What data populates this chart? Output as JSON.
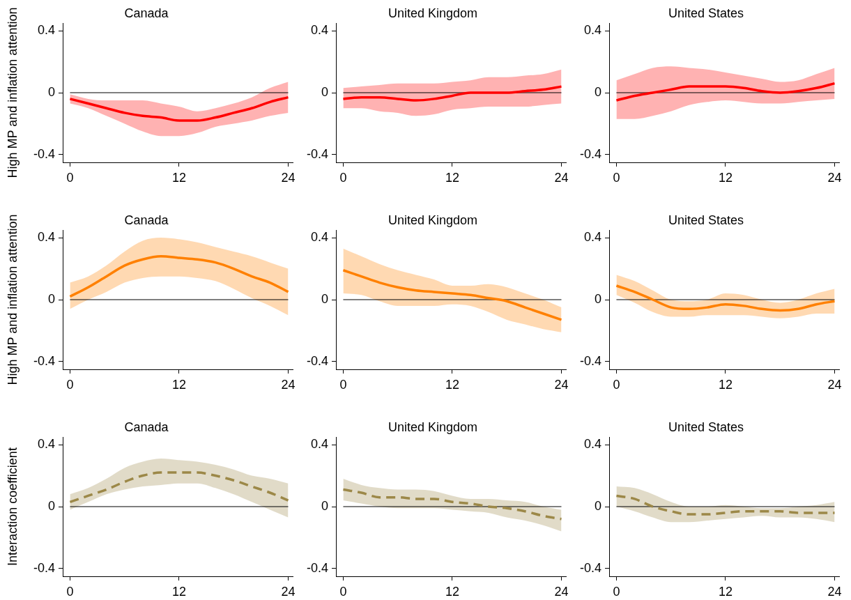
{
  "chart_data": [
    {
      "type": "line",
      "title": "Canada",
      "ylabel": "High MP and inflation attention",
      "x": [
        0,
        2,
        4,
        6,
        8,
        10,
        12,
        14,
        16,
        18,
        20,
        22,
        24
      ],
      "xlim": [
        -0.8,
        24.5
      ],
      "xticks": [
        0,
        12,
        24
      ],
      "ylim": [
        -0.45,
        0.45
      ],
      "yticks": [
        -0.4,
        0,
        0.4
      ],
      "grid": false,
      "legend": false,
      "marker": "none",
      "line_style": "solid",
      "ref_lines": [
        {
          "axis": "y",
          "value": 0,
          "color": "#000000"
        }
      ],
      "series": [
        {
          "color": "#ff0000",
          "values": [
            -0.04,
            -0.07,
            -0.1,
            -0.13,
            -0.15,
            -0.16,
            -0.18,
            -0.18,
            -0.16,
            -0.13,
            -0.1,
            -0.06,
            -0.03
          ],
          "lower": [
            -0.07,
            -0.1,
            -0.15,
            -0.2,
            -0.25,
            -0.28,
            -0.28,
            -0.26,
            -0.22,
            -0.2,
            -0.18,
            -0.15,
            -0.13
          ],
          "upper": [
            -0.01,
            -0.04,
            -0.05,
            -0.05,
            -0.05,
            -0.07,
            -0.09,
            -0.12,
            -0.1,
            -0.07,
            -0.03,
            0.03,
            0.07
          ]
        }
      ]
    },
    {
      "type": "line",
      "title": "United Kingdom",
      "x": [
        0,
        2,
        4,
        6,
        8,
        10,
        12,
        14,
        16,
        18,
        20,
        22,
        24
      ],
      "xlim": [
        -0.8,
        24.5
      ],
      "xticks": [
        0,
        12,
        24
      ],
      "ylim": [
        -0.45,
        0.45
      ],
      "yticks": [
        -0.4,
        0,
        0.4
      ],
      "grid": false,
      "legend": false,
      "marker": "none",
      "line_style": "solid",
      "ref_lines": [
        {
          "axis": "y",
          "value": 0,
          "color": "#000000"
        }
      ],
      "series": [
        {
          "color": "#ff0000",
          "values": [
            -0.04,
            -0.03,
            -0.03,
            -0.04,
            -0.05,
            -0.04,
            -0.02,
            0,
            0,
            0,
            0.01,
            0.02,
            0.04
          ],
          "lower": [
            -0.1,
            -0.1,
            -0.12,
            -0.13,
            -0.15,
            -0.14,
            -0.11,
            -0.1,
            -0.09,
            -0.09,
            -0.09,
            -0.08,
            -0.07
          ],
          "upper": [
            0.03,
            0.04,
            0.05,
            0.06,
            0.06,
            0.06,
            0.07,
            0.08,
            0.1,
            0.1,
            0.11,
            0.12,
            0.15
          ]
        }
      ]
    },
    {
      "type": "line",
      "title": "United States",
      "x": [
        0,
        2,
        4,
        6,
        8,
        10,
        12,
        14,
        16,
        18,
        20,
        22,
        24
      ],
      "xlim": [
        -0.8,
        24.5
      ],
      "xticks": [
        0,
        12,
        24
      ],
      "ylim": [
        -0.45,
        0.45
      ],
      "yticks": [
        -0.4,
        0,
        0.4
      ],
      "grid": false,
      "legend": false,
      "marker": "none",
      "line_style": "solid",
      "ref_lines": [
        {
          "axis": "y",
          "value": 0,
          "color": "#000000"
        }
      ],
      "series": [
        {
          "color": "#ff0000",
          "values": [
            -0.05,
            -0.02,
            0,
            0.02,
            0.04,
            0.04,
            0.04,
            0.03,
            0.01,
            0,
            0.01,
            0.03,
            0.06
          ],
          "lower": [
            -0.17,
            -0.17,
            -0.15,
            -0.12,
            -0.08,
            -0.06,
            -0.05,
            -0.06,
            -0.07,
            -0.07,
            -0.06,
            -0.05,
            -0.04
          ],
          "upper": [
            0.08,
            0.12,
            0.16,
            0.17,
            0.16,
            0.15,
            0.13,
            0.11,
            0.09,
            0.07,
            0.08,
            0.12,
            0.16
          ]
        }
      ]
    },
    {
      "type": "line",
      "title": "Canada",
      "ylabel": "High MP and inflation attention",
      "x": [
        0,
        2,
        4,
        6,
        8,
        10,
        12,
        14,
        16,
        18,
        20,
        22,
        24
      ],
      "xlim": [
        -0.8,
        24.5
      ],
      "xticks": [
        0,
        12,
        24
      ],
      "ylim": [
        -0.45,
        0.45
      ],
      "yticks": [
        -0.4,
        0,
        0.4
      ],
      "grid": false,
      "legend": false,
      "marker": "none",
      "line_style": "solid",
      "ref_lines": [
        {
          "axis": "y",
          "value": 0,
          "color": "#000000"
        }
      ],
      "series": [
        {
          "color": "#ff8000",
          "values": [
            0.02,
            0.08,
            0.15,
            0.22,
            0.26,
            0.28,
            0.27,
            0.26,
            0.24,
            0.2,
            0.15,
            0.11,
            0.05
          ],
          "lower": [
            -0.06,
            0,
            0.05,
            0.11,
            0.14,
            0.15,
            0.15,
            0.14,
            0.12,
            0.07,
            0.01,
            -0.04,
            -0.1
          ],
          "upper": [
            0.11,
            0.15,
            0.22,
            0.31,
            0.38,
            0.4,
            0.39,
            0.37,
            0.34,
            0.31,
            0.28,
            0.24,
            0.2
          ]
        }
      ]
    },
    {
      "type": "line",
      "title": "United Kingdom",
      "x": [
        0,
        2,
        4,
        6,
        8,
        10,
        12,
        14,
        16,
        18,
        20,
        22,
        24
      ],
      "xlim": [
        -0.8,
        24.5
      ],
      "xticks": [
        0,
        12,
        24
      ],
      "ylim": [
        -0.45,
        0.45
      ],
      "yticks": [
        -0.4,
        0,
        0.4
      ],
      "grid": false,
      "legend": false,
      "marker": "none",
      "line_style": "solid",
      "ref_lines": [
        {
          "axis": "y",
          "value": 0,
          "color": "#000000"
        }
      ],
      "series": [
        {
          "color": "#ff8000",
          "values": [
            0.19,
            0.15,
            0.11,
            0.08,
            0.06,
            0.05,
            0.04,
            0.03,
            0.01,
            -0.01,
            -0.05,
            -0.09,
            -0.13
          ],
          "lower": [
            0.04,
            0.03,
            -0.01,
            -0.04,
            -0.04,
            -0.04,
            -0.03,
            -0.04,
            -0.08,
            -0.13,
            -0.16,
            -0.19,
            -0.21
          ],
          "upper": [
            0.33,
            0.28,
            0.23,
            0.19,
            0.16,
            0.13,
            0.09,
            0.09,
            0.1,
            0.08,
            0.04,
            0,
            -0.05
          ]
        }
      ]
    },
    {
      "type": "line",
      "title": "United States",
      "x": [
        0,
        2,
        4,
        6,
        8,
        10,
        12,
        14,
        16,
        18,
        20,
        22,
        24
      ],
      "xlim": [
        -0.8,
        24.5
      ],
      "xticks": [
        0,
        12,
        24
      ],
      "ylim": [
        -0.45,
        0.45
      ],
      "yticks": [
        -0.4,
        0,
        0.4
      ],
      "grid": false,
      "legend": false,
      "marker": "none",
      "line_style": "solid",
      "ref_lines": [
        {
          "axis": "y",
          "value": 0,
          "color": "#000000"
        }
      ],
      "series": [
        {
          "color": "#ff8000",
          "values": [
            0.09,
            0.05,
            0,
            -0.05,
            -0.06,
            -0.05,
            -0.03,
            -0.04,
            -0.06,
            -0.07,
            -0.06,
            -0.03,
            -0.01
          ],
          "lower": [
            0.03,
            -0.02,
            -0.08,
            -0.11,
            -0.11,
            -0.1,
            -0.1,
            -0.1,
            -0.11,
            -0.12,
            -0.11,
            -0.09,
            -0.09
          ],
          "upper": [
            0.16,
            0.12,
            0.06,
            0,
            -0.01,
            0,
            0.04,
            0.03,
            0,
            -0.02,
            0,
            0.04,
            0.07
          ]
        }
      ]
    },
    {
      "type": "line",
      "title": "Canada",
      "ylabel": "Interaction coefficient",
      "x": [
        0,
        2,
        4,
        6,
        8,
        10,
        12,
        14,
        16,
        18,
        20,
        22,
        24
      ],
      "xlim": [
        -0.8,
        24.5
      ],
      "xticks": [
        0,
        12,
        24
      ],
      "ylim": [
        -0.45,
        0.45
      ],
      "yticks": [
        -0.4,
        0,
        0.4
      ],
      "grid": false,
      "legend": false,
      "marker": "none",
      "line_style": "dashed",
      "ref_lines": [
        {
          "axis": "y",
          "value": 0,
          "color": "#000000"
        }
      ],
      "series": [
        {
          "color": "#9c8848",
          "values": [
            0.03,
            0.07,
            0.11,
            0.16,
            0.2,
            0.22,
            0.22,
            0.22,
            0.2,
            0.17,
            0.13,
            0.09,
            0.04
          ],
          "lower": [
            -0.02,
            0.03,
            0.08,
            0.11,
            0.13,
            0.14,
            0.15,
            0.15,
            0.12,
            0.08,
            0.03,
            -0.02,
            -0.07
          ],
          "upper": [
            0.08,
            0.12,
            0.18,
            0.25,
            0.29,
            0.31,
            0.3,
            0.29,
            0.27,
            0.24,
            0.2,
            0.18,
            0.15
          ]
        }
      ]
    },
    {
      "type": "line",
      "title": "United Kingdom",
      "x": [
        0,
        2,
        4,
        6,
        8,
        10,
        12,
        14,
        16,
        18,
        20,
        22,
        24
      ],
      "xlim": [
        -0.8,
        24.5
      ],
      "xticks": [
        0,
        12,
        24
      ],
      "ylim": [
        -0.45,
        0.45
      ],
      "yticks": [
        -0.4,
        0,
        0.4
      ],
      "grid": false,
      "legend": false,
      "marker": "none",
      "line_style": "dashed",
      "ref_lines": [
        {
          "axis": "y",
          "value": 0,
          "color": "#000000"
        }
      ],
      "series": [
        {
          "color": "#9c8848",
          "values": [
            0.11,
            0.09,
            0.06,
            0.06,
            0.05,
            0.05,
            0.03,
            0.02,
            0,
            -0.01,
            -0.03,
            -0.06,
            -0.08
          ],
          "lower": [
            0.04,
            0.02,
            0,
            -0.01,
            -0.01,
            -0.01,
            -0.02,
            -0.03,
            -0.04,
            -0.07,
            -0.09,
            -0.12,
            -0.16
          ],
          "upper": [
            0.18,
            0.14,
            0.12,
            0.11,
            0.11,
            0.1,
            0.07,
            0.05,
            0.05,
            0.04,
            0.03,
            0,
            -0.02
          ]
        }
      ]
    },
    {
      "type": "line",
      "title": "United States",
      "x": [
        0,
        2,
        4,
        6,
        8,
        10,
        12,
        14,
        16,
        18,
        20,
        22,
        24
      ],
      "xlim": [
        -0.8,
        24.5
      ],
      "xticks": [
        0,
        12,
        24
      ],
      "ylim": [
        -0.45,
        0.45
      ],
      "yticks": [
        -0.4,
        0,
        0.4
      ],
      "grid": false,
      "legend": false,
      "marker": "none",
      "line_style": "dashed",
      "ref_lines": [
        {
          "axis": "y",
          "value": 0,
          "color": "#000000"
        }
      ],
      "series": [
        {
          "color": "#9c8848",
          "values": [
            0.07,
            0.05,
            0,
            -0.03,
            -0.05,
            -0.05,
            -0.04,
            -0.03,
            -0.03,
            -0.03,
            -0.04,
            -0.04,
            -0.04
          ],
          "lower": [
            0,
            -0.03,
            -0.07,
            -0.1,
            -0.1,
            -0.09,
            -0.08,
            -0.07,
            -0.06,
            -0.07,
            -0.07,
            -0.08,
            -0.1
          ],
          "upper": [
            0.13,
            0.12,
            0.08,
            0.03,
            0,
            0,
            0.01,
            0,
            -0.01,
            -0.01,
            0,
            0.01,
            0.03
          ]
        }
      ]
    }
  ]
}
